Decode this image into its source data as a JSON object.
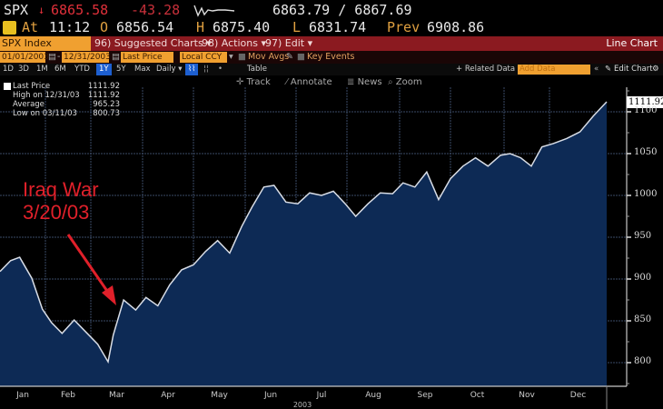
{
  "ticker": {
    "symbol": "SPX",
    "direction_icon": "down-arrow-icon",
    "last": "6865.58",
    "change": "-43.28",
    "bid_ask": "6863.79 / 6867.69",
    "at_label": "At",
    "time": "11:12",
    "open_label": "O",
    "open": "6856.54",
    "high_label": "H",
    "high": "6875.40",
    "low_label": "L",
    "low": "6831.74",
    "prev_label": "Prev",
    "prev": "6908.86"
  },
  "menubar": {
    "index_label": "SPX Index",
    "suggested": "96) Suggested Charts ▾",
    "actions": "98) Actions ▾",
    "edit": "97) Edit ▾",
    "view": "Line Chart"
  },
  "controls": {
    "start_date": "01/01/2003",
    "end_date": "12/31/2003",
    "field": "Last Price",
    "currency": "Local CCY",
    "mov_avgs": "Mov Avgs",
    "key_events": "Key Events",
    "related_data": "+ Related Data ▾",
    "add_data_placeholder": "Add Data",
    "collapse": "«",
    "edit_chart": "Edit Chart",
    "settings_icon": "gear-icon"
  },
  "periods": [
    "1D",
    "3D",
    "1M",
    "6M",
    "YTD",
    "1Y",
    "5Y",
    "Max",
    "Daily ▾"
  ],
  "period_selected": "1Y",
  "table_label": "Table",
  "tools": {
    "track": "Track",
    "annotate": "Annotate",
    "news": "News",
    "zoom": "Zoom"
  },
  "legend": [
    {
      "label": "Last Price",
      "value": "1111.92"
    },
    {
      "label": "High on 12/31/03",
      "value": "1111.92"
    },
    {
      "label": "Average",
      "value": "965.23"
    },
    {
      "label": "Low on 03/11/03",
      "value": "800.73"
    }
  ],
  "annotation": {
    "line1": "Iraq War",
    "line2": "3/20/03",
    "color": "#e0202a"
  },
  "colors": {
    "area_fill": "#0d2a55",
    "line": "#d8dde6",
    "menubar": "#8b1a20",
    "accent_orange": "#f0a030",
    "down_red": "#e0303a"
  },
  "chart_data": {
    "type": "area",
    "title": "SPX Index",
    "xlabel": "2003",
    "ylabel": "",
    "categories": [
      "Jan",
      "Feb",
      "Mar",
      "Apr",
      "May",
      "Jun",
      "Jul",
      "Aug",
      "Sep",
      "Oct",
      "Nov",
      "Dec"
    ],
    "ylim": [
      775,
      1120
    ],
    "yticks": [
      800,
      850,
      900,
      950,
      1000,
      1050,
      1100
    ],
    "last_value_label": "1111.92",
    "grid": true,
    "series": [
      {
        "name": "Last Price",
        "x": [
          "01/02",
          "01/08",
          "01/14",
          "01/22",
          "01/29",
          "02/05",
          "02/12",
          "02/20",
          "02/27",
          "03/05",
          "03/11",
          "03/14",
          "03/20",
          "03/27",
          "04/03",
          "04/10",
          "04/17",
          "04/24",
          "05/01",
          "05/08",
          "05/15",
          "05/22",
          "05/29",
          "06/05",
          "06/12",
          "06/18",
          "06/25",
          "07/02",
          "07/09",
          "07/16",
          "07/23",
          "07/30",
          "08/06",
          "08/13",
          "08/20",
          "08/27",
          "09/03",
          "09/10",
          "09/17",
          "09/24",
          "10/01",
          "10/08",
          "10/15",
          "10/22",
          "10/29",
          "11/05",
          "11/12",
          "11/19",
          "11/26",
          "12/03",
          "12/10",
          "12/17",
          "12/24",
          "12/31"
        ],
        "values": [
          909,
          922,
          926,
          901,
          864,
          848,
          835,
          851,
          838,
          822,
          801,
          833,
          875,
          863,
          878,
          868,
          893,
          911,
          917,
          933,
          946,
          931,
          963,
          986,
          1010,
          1012,
          992,
          990,
          1003,
          1000,
          1005,
          990,
          975,
          990,
          1003,
          1002,
          1015,
          1010,
          1028,
          995,
          1020,
          1035,
          1045,
          1035,
          1048,
          1050,
          1045,
          1035,
          1058,
          1062,
          1068,
          1076,
          1095,
          1112
        ]
      }
    ]
  }
}
